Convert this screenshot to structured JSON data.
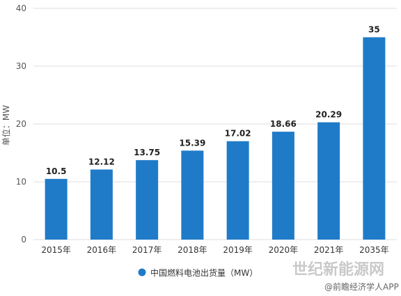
{
  "chart_data": {
    "type": "bar",
    "categories": [
      "2015年",
      "2016年",
      "2017年",
      "2018年",
      "2019年",
      "2020年",
      "2021年",
      "2035年"
    ],
    "series": [
      {
        "name": "中国燃料电池出货量（MW）",
        "values": [
          10.5,
          12.12,
          13.75,
          15.39,
          17.02,
          18.66,
          20.29,
          35
        ],
        "color": "#1f7bc8"
      }
    ],
    "data_labels": [
      "10.5",
      "12.12",
      "13.75",
      "15.39",
      "17.02",
      "18.66",
      "20.29",
      "35"
    ],
    "ylabel": "单位：MW",
    "yticks": [
      0,
      10,
      20,
      30,
      40
    ],
    "ylim": [
      0,
      40
    ],
    "grid": "horizontal",
    "legend_position": "bottom",
    "title": ""
  },
  "watermarks": {
    "site": "世纪新能源网",
    "app": "@前瞻经济学人APP"
  },
  "colors": {
    "bar": "#1f7bc8",
    "grid": "#dddddd"
  }
}
